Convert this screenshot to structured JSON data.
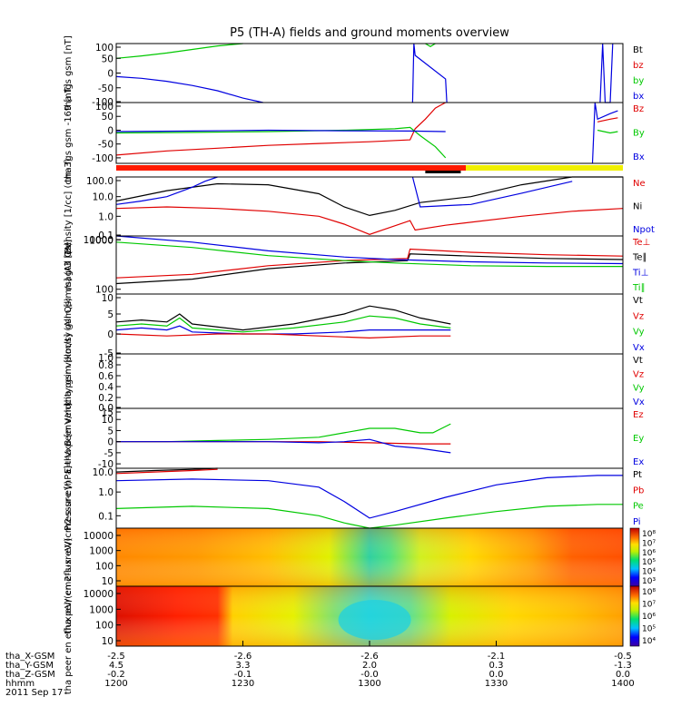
{
  "title": "P5 (TH-A) fields and ground moments overview",
  "colors": {
    "black": "#000000",
    "red": "#e00000",
    "green": "#00c800",
    "blue": "#0000e0",
    "yellow": "#f0f000",
    "bar_red": "#ff1a00"
  },
  "chart_data": [
    {
      "type": "line",
      "panel": "fgs",
      "ylabel": "tha fgs gsm [nT]",
      "ylim": [
        -100,
        100
      ],
      "yticks": [
        "100",
        "50",
        "0",
        "-50",
        "-100"
      ],
      "legend": [
        "Bt",
        "bz",
        "by",
        "bx"
      ],
      "series": [
        {
          "name": "by",
          "color": "green",
          "x": [
            1200,
            1210,
            1220,
            1230,
            1240,
            1250
          ],
          "values": [
            50,
            58,
            68,
            80,
            92,
            100
          ]
        },
        {
          "name": "bx",
          "color": "blue",
          "x": [
            1200,
            1210,
            1220,
            1230,
            1240,
            1250,
            1258
          ],
          "values": [
            -12,
            -18,
            -28,
            -42,
            -60,
            -85,
            -100
          ]
        },
        {
          "name": "bx",
          "color": "blue",
          "x": [
            1317,
            1317.5,
            1318,
            1330,
            1330.5
          ],
          "values": [
            -100,
            100,
            60,
            -20,
            -100
          ]
        },
        {
          "name": "by",
          "color": "green",
          "x": [
            1322,
            1324,
            1326
          ],
          "values": [
            100,
            90,
            100
          ]
        },
        {
          "name": "bx",
          "color": "blue",
          "x": [
            1391,
            1392,
            1393,
            1395,
            1396
          ],
          "values": [
            -100,
            100,
            -100,
            -100,
            100
          ]
        }
      ]
    },
    {
      "type": "line",
      "panel": "fgl",
      "ylabel": "tha fgs gsm -169 [nT]",
      "ylim": [
        -120,
        100
      ],
      "yticks": [
        "100",
        "50",
        "0",
        "-50",
        "-100"
      ],
      "legend": [
        "Bz",
        "By",
        "Bx"
      ],
      "series": [
        {
          "name": "Bz",
          "color": "red",
          "x": [
            1200,
            1220,
            1240,
            1260,
            1280,
            1300,
            1316,
            1318,
            1322,
            1326,
            1328,
            1330
          ],
          "values": [
            -90,
            -75,
            -65,
            -55,
            -48,
            -42,
            -35,
            5,
            40,
            80,
            90,
            100
          ]
        },
        {
          "name": "By",
          "color": "green",
          "x": [
            1200,
            1230,
            1260,
            1290,
            1310,
            1316,
            1320,
            1326,
            1330
          ],
          "values": [
            -10,
            -8,
            -5,
            0,
            5,
            10,
            -20,
            -60,
            -100
          ]
        },
        {
          "name": "Bx",
          "color": "blue",
          "x": [
            1200,
            1230,
            1260,
            1290,
            1316,
            1330
          ],
          "values": [
            -5,
            -3,
            0,
            -2,
            -3,
            -5
          ]
        },
        {
          "name": "Bx",
          "color": "blue",
          "x": [
            1388,
            1389,
            1390,
            1395,
            1398
          ],
          "values": [
            -120,
            100,
            40,
            60,
            70
          ]
        },
        {
          "name": "By",
          "color": "green",
          "x": [
            1390,
            1395,
            1398
          ],
          "values": [
            0,
            -10,
            -5
          ]
        },
        {
          "name": "Bz",
          "color": "red",
          "x": [
            1390,
            1395,
            1398
          ],
          "values": [
            30,
            40,
            45
          ]
        }
      ]
    },
    {
      "type": "line",
      "panel": "density",
      "ylabel": "Density [1/cc] (cm-3)",
      "log": true,
      "ylim": [
        0.1,
        100
      ],
      "yticks": [
        "100.0",
        "10.0",
        "1.0",
        "0.1"
      ],
      "legend": [
        "Ne",
        "Ni",
        "Npot"
      ],
      "series": [
        {
          "name": "Ni",
          "color": "black",
          "x": [
            1200,
            1220,
            1240,
            1260,
            1280,
            1290,
            1300,
            1310,
            1320,
            1340,
            1360,
            1380,
            1400
          ],
          "values": [
            6,
            20,
            45,
            40,
            14,
            3,
            1.1,
            2,
            5,
            10,
            40,
            100,
            150
          ]
        },
        {
          "name": "Ne",
          "color": "red",
          "x": [
            1200,
            1220,
            1240,
            1260,
            1280,
            1290,
            1300,
            1316,
            1318,
            1330,
            1360,
            1380,
            1400
          ],
          "values": [
            2.5,
            3,
            2.5,
            1.8,
            1,
            0.4,
            0.12,
            0.6,
            0.2,
            0.35,
            1,
            1.8,
            2.5
          ]
        },
        {
          "name": "Npot",
          "color": "blue",
          "x": [
            1200,
            1210,
            1220,
            1230,
            1235,
            1240
          ],
          "values": [
            4,
            6,
            10,
            30,
            60,
            100
          ]
        },
        {
          "name": "Npot",
          "color": "blue",
          "x": [
            1317,
            1320,
            1340,
            1360,
            1380
          ],
          "values": [
            100,
            3,
            4,
            15,
            60
          ]
        }
      ]
    },
    {
      "type": "line",
      "panel": "temperature",
      "ylabel": "magt3 [eV]",
      "log": true,
      "ylim": [
        80,
        1200
      ],
      "yticks": [
        "10000",
        "1000",
        "100"
      ],
      "legend": [
        "Te⊥",
        "Te∥",
        "Ti⊥",
        "Ti∥"
      ],
      "series": [
        {
          "name": "Te∥",
          "color": "black",
          "x": [
            1200,
            1230,
            1260,
            1290,
            1315,
            1316,
            1340,
            1370,
            1400
          ],
          "values": [
            130,
            160,
            260,
            340,
            380,
            520,
            470,
            420,
            400
          ]
        },
        {
          "name": "Te⊥",
          "color": "red",
          "x": [
            1200,
            1230,
            1260,
            1290,
            1315,
            1316,
            1340,
            1370,
            1400
          ],
          "values": [
            170,
            200,
            300,
            380,
            420,
            650,
            560,
            500,
            470
          ]
        },
        {
          "name": "Ti⊥",
          "color": "blue",
          "x": [
            1200,
            1230,
            1260,
            1290,
            1310,
            1340,
            1370,
            1400
          ],
          "values": [
            1300,
            900,
            600,
            450,
            400,
            360,
            340,
            330
          ]
        },
        {
          "name": "Ti∥",
          "color": "green",
          "x": [
            1200,
            1230,
            1260,
            1290,
            1310,
            1340,
            1370,
            1400
          ],
          "values": [
            900,
            700,
            480,
            380,
            340,
            300,
            290,
            290
          ]
        }
      ]
    },
    {
      "type": "line",
      "panel": "ion_velocity",
      "ylabel": "tha peir velocity gsm [km/s] (All Qs)",
      "ylim": [
        -5,
        10
      ],
      "yticks": [
        "10",
        "5",
        "0",
        "-5"
      ],
      "legend": [
        "Vt",
        "Vz",
        "Vy",
        "Vx"
      ],
      "series": [
        {
          "name": "Vt",
          "color": "black",
          "x": [
            1200,
            1210,
            1220,
            1225,
            1230,
            1250,
            1270,
            1290,
            1300,
            1310,
            1320,
            1332
          ],
          "values": [
            3,
            3.5,
            3,
            5,
            2.5,
            1,
            2.5,
            5,
            7,
            6,
            4,
            2.5
          ]
        },
        {
          "name": "Vy",
          "color": "green",
          "x": [
            1200,
            1210,
            1220,
            1225,
            1230,
            1250,
            1270,
            1290,
            1300,
            1310,
            1320,
            1332
          ],
          "values": [
            2,
            2.5,
            2,
            4,
            1.5,
            0.5,
            1.5,
            3,
            4.5,
            4,
            2.5,
            1.5
          ]
        },
        {
          "name": "Vx",
          "color": "blue",
          "x": [
            1200,
            1210,
            1220,
            1225,
            1230,
            1250,
            1270,
            1290,
            1300,
            1310,
            1320,
            1332
          ],
          "values": [
            1,
            1.5,
            1,
            2,
            0.5,
            0,
            0,
            0.5,
            1,
            1,
            1,
            1
          ]
        },
        {
          "name": "Vz",
          "color": "red",
          "x": [
            1200,
            1220,
            1240,
            1260,
            1280,
            1300,
            1320,
            1332
          ],
          "values": [
            0,
            -0.5,
            0,
            0,
            -0.5,
            -1,
            -0.5,
            -0.5
          ]
        }
      ]
    },
    {
      "type": "line",
      "panel": "electron_velocity",
      "ylabel": "tha peer velocity gsm [km/s] (All Qs)",
      "ylim": [
        0,
        1
      ],
      "yticks": [
        "1.0",
        "0.8",
        "0.6",
        "0.4",
        "0.2",
        "0.0"
      ],
      "legend": [
        "Vt",
        "Vz",
        "Vy",
        "Vx"
      ],
      "series": []
    },
    {
      "type": "line",
      "panel": "efield",
      "ylabel": "E=-VxB [mV/m]",
      "ylim": [
        -12,
        15
      ],
      "yticks": [
        "15",
        "10",
        "5",
        "0",
        "-5",
        "-10"
      ],
      "legend": [
        "Ez",
        "Ey",
        "Ex"
      ],
      "series": [
        {
          "name": "Ey",
          "color": "green",
          "x": [
            1200,
            1220,
            1240,
            1260,
            1280,
            1290,
            1300,
            1310,
            1320,
            1325,
            1332
          ],
          "values": [
            0,
            0,
            0.5,
            1,
            2,
            4,
            6,
            6,
            4,
            4,
            8
          ]
        },
        {
          "name": "Ez",
          "color": "red",
          "x": [
            1200,
            1220,
            1240,
            1260,
            1280,
            1300,
            1320,
            1332
          ],
          "values": [
            0,
            0,
            0,
            0,
            0,
            -0.5,
            -1,
            -1
          ]
        },
        {
          "name": "Ex",
          "color": "blue",
          "x": [
            1200,
            1220,
            1240,
            1260,
            1280,
            1290,
            1300,
            1310,
            1320,
            1332
          ],
          "values": [
            0,
            0,
            0,
            0,
            -0.5,
            0,
            1,
            -2,
            -3,
            -5
          ]
        }
      ]
    },
    {
      "type": "line",
      "panel": "pressure",
      "ylabel": "Pressure [nPa]",
      "log": true,
      "ylim": [
        0.03,
        10
      ],
      "yticks": [
        "10.0",
        "1.0",
        "0.1"
      ],
      "legend": [
        "Pt",
        "Pb",
        "Pe",
        "Pi"
      ],
      "series": [
        {
          "name": "Pt",
          "color": "black",
          "x": [
            1200,
            1215,
            1230,
            1240
          ],
          "values": [
            7,
            8,
            9,
            10
          ]
        },
        {
          "name": "Pb",
          "color": "red",
          "x": [
            1200,
            1215,
            1230,
            1240
          ],
          "values": [
            6,
            7,
            8,
            9
          ]
        },
        {
          "name": "Pi",
          "color": "blue",
          "x": [
            1200,
            1230,
            1260,
            1280,
            1290,
            1300,
            1310,
            1330,
            1350,
            1370,
            1390,
            1400
          ],
          "values": [
            3,
            3.5,
            3,
            1.6,
            0.4,
            0.08,
            0.15,
            0.6,
            2,
            4,
            5,
            5
          ]
        },
        {
          "name": "Pe",
          "color": "green",
          "x": [
            1200,
            1230,
            1260,
            1280,
            1290,
            1300,
            1310,
            1330,
            1350,
            1370,
            1390,
            1400
          ],
          "values": [
            0.2,
            0.25,
            0.2,
            0.1,
            0.05,
            0.03,
            0.04,
            0.08,
            0.15,
            0.25,
            0.3,
            0.3
          ]
        }
      ]
    },
    {
      "type": "heatmap",
      "panel": "ion_spectrogram",
      "ylabel": "tha peir en eflux eV/(cm2-s-sr-eV)",
      "log": true,
      "ylim": [
        10,
        20000
      ],
      "yticks": [
        "10000",
        "1000",
        "100",
        "10"
      ],
      "colorbar_ticks": [
        "10⁸",
        "10⁷",
        "10⁶",
        "10⁵",
        "10⁴",
        "10³"
      ]
    },
    {
      "type": "heatmap",
      "panel": "electron_spectrogram",
      "ylabel": "tha peer en eflux eV/(cm2-s-sr-eV)",
      "log": true,
      "ylim": [
        10,
        20000
      ],
      "yticks": [
        "10000",
        "1000",
        "100",
        "10"
      ],
      "colorbar_ticks": [
        "10⁸",
        "10⁷",
        "10⁶",
        "10⁵",
        "10⁴"
      ]
    }
  ],
  "xaxis": {
    "xlim": [
      1200,
      1400
    ],
    "ticks": [
      {
        "hhmm": "1200",
        "x": "-2.5",
        "y": "4.5",
        "z": "-0.2"
      },
      {
        "hhmm": "1230",
        "x": "-2.6",
        "y": "3.3",
        "z": "-0.1"
      },
      {
        "hhmm": "1300",
        "x": "-2.6",
        "y": "2.0",
        "z": "-0.0"
      },
      {
        "hhmm": "1330",
        "x": "-2.1",
        "y": "0.3",
        "z": "0.0"
      },
      {
        "hhmm": "1400",
        "x": "-0.5",
        "y": "-1.3",
        "z": "0.0"
      }
    ],
    "row_labels": [
      "tha_X-GSM",
      "tha_Y-GSM",
      "tha_Z-GSM",
      "hhmm",
      "2011 Sep 17"
    ]
  },
  "mode_bars": [
    {
      "color": "bar_red",
      "from": 1200,
      "to": 1338
    },
    {
      "color": "yellow",
      "from": 1338,
      "to": 1400
    },
    {
      "color": "black",
      "from": 1322,
      "to": 1336
    }
  ]
}
